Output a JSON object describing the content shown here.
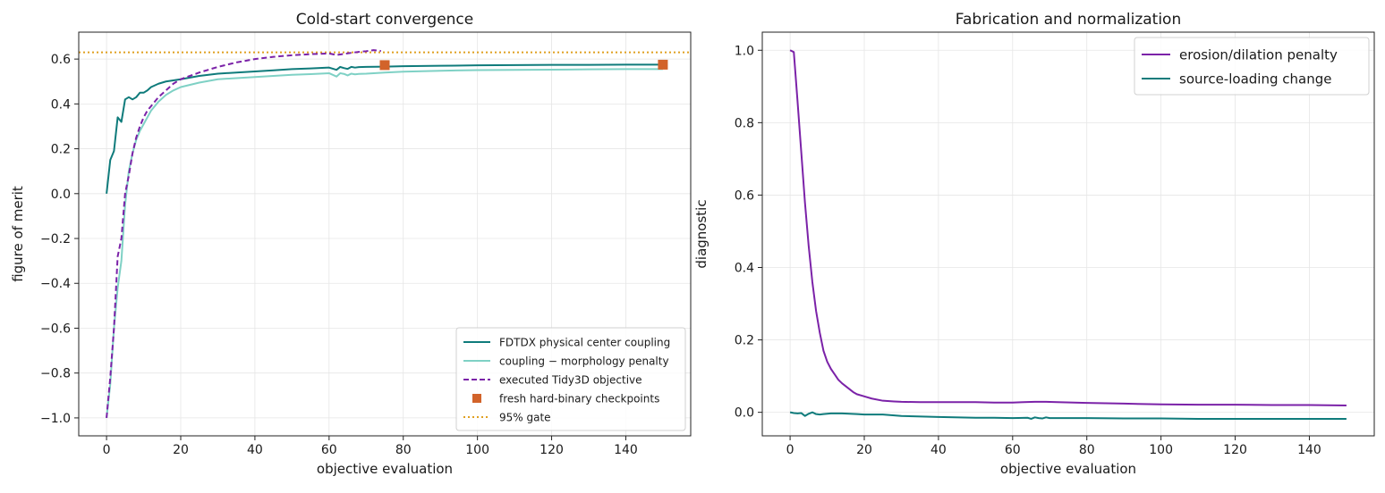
{
  "colors": {
    "fdtdx": "#0f7b7b",
    "penalized": "#7fd1c5",
    "tidy3d": "#7b22a8",
    "checkpoint": "#d2632a",
    "gate": "#e0a020",
    "erosion": "#7b22a8",
    "source": "#0f7b7b"
  },
  "chart_data": [
    {
      "type": "line",
      "title": "Cold-start convergence",
      "xlabel": "objective evaluation",
      "ylabel": "figure of merit",
      "xlim": [
        -7.5,
        157.5
      ],
      "ylim": [
        -1.08,
        0.72
      ],
      "xticks": [
        0,
        20,
        40,
        60,
        80,
        100,
        120,
        140
      ],
      "yticks": [
        -1.0,
        -0.8,
        -0.6,
        -0.4,
        -0.2,
        0.0,
        0.2,
        0.4,
        0.6
      ],
      "ytick_labels": [
        "−1.0",
        "−0.8",
        "−0.6",
        "−0.4",
        "−0.2",
        "0.0",
        "0.2",
        "0.4",
        "0.6"
      ],
      "grid": true,
      "legend_position": "lower-right",
      "series": [
        {
          "name": "FDTDX physical center coupling",
          "style": "solid",
          "color_key": "fdtdx",
          "x": [
            0,
            1,
            2,
            3,
            4,
            5,
            6,
            7,
            8,
            9,
            10,
            11,
            12,
            14,
            16,
            18,
            20,
            25,
            30,
            35,
            40,
            45,
            50,
            55,
            60,
            62,
            63,
            64,
            65,
            66,
            67,
            68,
            70,
            75,
            80,
            90,
            100,
            110,
            120,
            130,
            140,
            150
          ],
          "y": [
            0.0,
            0.15,
            0.19,
            0.34,
            0.32,
            0.42,
            0.43,
            0.42,
            0.43,
            0.45,
            0.45,
            0.46,
            0.475,
            0.49,
            0.5,
            0.505,
            0.51,
            0.525,
            0.535,
            0.54,
            0.545,
            0.55,
            0.555,
            0.558,
            0.562,
            0.552,
            0.565,
            0.56,
            0.556,
            0.565,
            0.562,
            0.564,
            0.565,
            0.566,
            0.568,
            0.57,
            0.572,
            0.573,
            0.574,
            0.574,
            0.575,
            0.575
          ]
        },
        {
          "name": "coupling − morphology penalty",
          "style": "solid",
          "color_key": "penalized",
          "x": [
            0,
            1,
            2,
            3,
            4,
            5,
            6,
            7,
            8,
            9,
            10,
            11,
            12,
            14,
            16,
            18,
            20,
            25,
            30,
            35,
            40,
            45,
            50,
            55,
            60,
            62,
            63,
            64,
            65,
            66,
            67,
            68,
            70,
            75,
            80,
            90,
            100,
            110,
            120,
            130,
            140,
            150
          ],
          "y": [
            -1.0,
            -0.85,
            -0.6,
            -0.42,
            -0.3,
            -0.05,
            0.1,
            0.18,
            0.24,
            0.28,
            0.31,
            0.34,
            0.37,
            0.41,
            0.44,
            0.46,
            0.475,
            0.495,
            0.51,
            0.515,
            0.52,
            0.525,
            0.53,
            0.533,
            0.537,
            0.522,
            0.537,
            0.534,
            0.527,
            0.535,
            0.532,
            0.534,
            0.535,
            0.54,
            0.544,
            0.548,
            0.551,
            0.552,
            0.553,
            0.554,
            0.555,
            0.555
          ]
        },
        {
          "name": "executed Tidy3D objective",
          "style": "dashed",
          "color_key": "tidy3d",
          "x": [
            0,
            1,
            2,
            3,
            4,
            5,
            6,
            7,
            8,
            9,
            10,
            11,
            12,
            14,
            16,
            18,
            20,
            25,
            30,
            35,
            40,
            45,
            50,
            55,
            60,
            62,
            64,
            66,
            68,
            70,
            72,
            74
          ],
          "y": [
            -1.0,
            -0.82,
            -0.6,
            -0.28,
            -0.2,
            0.0,
            0.08,
            0.18,
            0.25,
            0.3,
            0.34,
            0.37,
            0.39,
            0.43,
            0.46,
            0.49,
            0.51,
            0.54,
            0.565,
            0.585,
            0.6,
            0.61,
            0.617,
            0.622,
            0.625,
            0.618,
            0.623,
            0.628,
            0.632,
            0.635,
            0.64,
            0.636
          ]
        }
      ],
      "checkpoints": {
        "name": "fresh hard-binary checkpoints",
        "color_key": "checkpoint",
        "x": [
          75,
          150
        ],
        "y": [
          0.573,
          0.575
        ]
      },
      "gate": {
        "name": "95% gate",
        "color_key": "gate",
        "y": 0.63
      }
    },
    {
      "type": "line",
      "title": "Fabrication and normalization",
      "xlabel": "objective evaluation",
      "ylabel": "diagnostic",
      "xlim": [
        -7.5,
        157.5
      ],
      "ylim": [
        -0.065,
        1.05
      ],
      "xticks": [
        0,
        20,
        40,
        60,
        80,
        100,
        120,
        140
      ],
      "yticks": [
        0.0,
        0.2,
        0.4,
        0.6,
        0.8,
        1.0
      ],
      "ytick_labels": [
        "0.0",
        "0.2",
        "0.4",
        "0.6",
        "0.8",
        "1.0"
      ],
      "grid": true,
      "legend_position": "upper-right",
      "series": [
        {
          "name": "erosion/dilation penalty",
          "style": "solid",
          "color_key": "erosion",
          "x": [
            0,
            1,
            2,
            3,
            4,
            5,
            6,
            7,
            8,
            9,
            10,
            11,
            12,
            13,
            14,
            15,
            16,
            17,
            18,
            20,
            22,
            25,
            28,
            30,
            35,
            40,
            45,
            50,
            55,
            60,
            63,
            66,
            69,
            72,
            80,
            90,
            100,
            110,
            120,
            130,
            140,
            150
          ],
          "y": [
            1.0,
            0.995,
            0.86,
            0.72,
            0.58,
            0.46,
            0.36,
            0.28,
            0.22,
            0.17,
            0.14,
            0.12,
            0.105,
            0.09,
            0.08,
            0.072,
            0.064,
            0.056,
            0.05,
            0.044,
            0.038,
            0.032,
            0.03,
            0.029,
            0.028,
            0.028,
            0.028,
            0.028,
            0.027,
            0.027,
            0.028,
            0.029,
            0.029,
            0.028,
            0.026,
            0.024,
            0.022,
            0.021,
            0.021,
            0.02,
            0.02,
            0.019
          ]
        },
        {
          "name": "source-loading change",
          "style": "solid",
          "color_key": "source",
          "x": [
            0,
            1,
            2,
            3,
            4,
            5,
            6,
            7,
            8,
            9,
            10,
            11,
            12,
            14,
            16,
            18,
            20,
            25,
            30,
            40,
            50,
            55,
            60,
            64,
            65,
            66,
            67,
            68,
            69,
            70,
            80,
            90,
            100,
            110,
            120,
            130,
            140,
            150
          ],
          "y": [
            0.0,
            -0.002,
            -0.003,
            -0.002,
            -0.01,
            -0.004,
            0.0,
            -0.005,
            -0.006,
            -0.005,
            -0.004,
            -0.003,
            -0.003,
            -0.003,
            -0.004,
            -0.005,
            -0.006,
            -0.006,
            -0.01,
            -0.013,
            -0.015,
            -0.015,
            -0.016,
            -0.015,
            -0.018,
            -0.014,
            -0.016,
            -0.017,
            -0.014,
            -0.016,
            -0.016,
            -0.017,
            -0.017,
            -0.018,
            -0.018,
            -0.018,
            -0.018,
            -0.018
          ]
        }
      ]
    }
  ]
}
